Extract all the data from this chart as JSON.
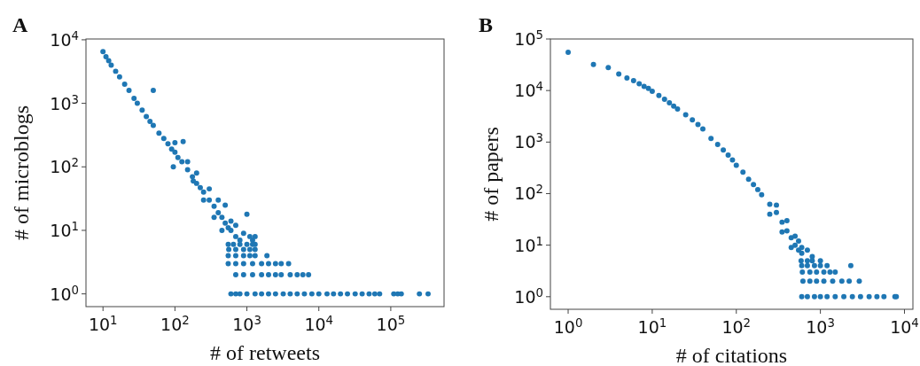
{
  "chart_data": [
    {
      "type": "scatter",
      "title": "A",
      "xlabel": "# of retweets",
      "ylabel": "# of microblogs",
      "log": "xy",
      "marker": "circle",
      "xlim": [
        5.8,
        550000
      ],
      "ylim": [
        0.63,
        10300
      ],
      "xticks": [
        {
          "value": 10,
          "label": "10$^{1}$"
        },
        {
          "value": 100,
          "label": "10$^{2}$"
        },
        {
          "value": 1000,
          "label": "10$^{3}$"
        },
        {
          "value": 10000,
          "label": "10$^{4}$"
        },
        {
          "value": 100000,
          "label": "10$^{5}$"
        }
      ],
      "yticks": [
        {
          "value": 1,
          "label": "10$^{0}$"
        },
        {
          "value": 10,
          "label": "10$^{1}$"
        },
        {
          "value": 100,
          "label": "10$^{2}$"
        },
        {
          "value": 1000,
          "label": "10$^{3}$"
        },
        {
          "value": 10000,
          "label": "10$^{4}$"
        }
      ],
      "series": [
        {
          "color": "#1f77b4",
          "x": [
            10,
            11,
            12,
            13,
            15,
            17,
            20,
            23,
            27,
            30,
            35,
            40,
            45,
            50,
            60,
            70,
            80,
            90,
            100,
            110,
            125,
            150,
            175,
            200,
            225,
            250,
            300,
            350,
            400,
            450,
            500,
            550,
            600,
            700,
            800,
            50,
            100,
            95,
            150,
            200,
            250,
            300,
            350,
            400,
            450,
            500,
            600,
            700,
            1000,
            900,
            1100,
            1200,
            1300,
            130,
            180,
            550,
            650,
            800,
            1000,
            1200,
            1300,
            560,
            700,
            900,
            1100,
            1300,
            550,
            700,
            900,
            1100,
            1300,
            1900,
            550,
            700,
            900,
            1200,
            1600,
            2000,
            2500,
            3000,
            3800,
            700,
            900,
            1200,
            1600,
            2000,
            2500,
            3000,
            4000,
            5000,
            6000,
            7200,
            600,
            700,
            800,
            1000,
            1300,
            1600,
            2000,
            2500,
            3200,
            4000,
            5000,
            6300,
            8000,
            10000,
            13000,
            16000,
            20000,
            25000,
            32000,
            40000,
            50000,
            60000,
            70000,
            110000,
            125000,
            140000,
            250000,
            330000
          ],
          "values": [
            6500,
            5400,
            4700,
            4000,
            3200,
            2600,
            2000,
            1600,
            1200,
            1000,
            780,
            620,
            520,
            450,
            340,
            280,
            230,
            190,
            170,
            140,
            120,
            90,
            70,
            55,
            47,
            40,
            30,
            24,
            19,
            16,
            13,
            11,
            10,
            8,
            7,
            1600,
            240,
            100,
            120,
            80,
            30,
            45,
            16,
            30,
            10,
            25,
            14,
            12,
            18,
            9,
            8,
            7,
            8,
            250,
            60,
            6,
            6,
            6,
            6,
            6,
            6,
            5,
            5,
            5,
            5,
            5,
            4,
            4,
            4,
            4,
            4,
            4,
            3,
            3,
            3,
            3,
            3,
            3,
            3,
            3,
            3,
            2,
            2,
            2,
            2,
            2,
            2,
            2,
            2,
            2,
            2,
            2,
            1,
            1,
            1,
            1,
            1,
            1,
            1,
            1,
            1,
            1,
            1,
            1,
            1,
            1,
            1,
            1,
            1,
            1,
            1,
            1,
            1,
            1,
            1,
            1,
            1,
            1,
            1,
            1
          ]
        }
      ]
    },
    {
      "type": "scatter",
      "title": "B",
      "xlabel": "# of citations",
      "ylabel": "# of papers",
      "log": "xy",
      "marker": "circle",
      "xlim": [
        0.615,
        12600
      ],
      "ylim": [
        0.57,
        100000
      ],
      "xticks": [
        {
          "value": 1,
          "label": "10$^{0}$"
        },
        {
          "value": 10,
          "label": "10$^{1}$"
        },
        {
          "value": 100,
          "label": "10$^{2}$"
        },
        {
          "value": 1000,
          "label": "10$^{3}$"
        },
        {
          "value": 10000,
          "label": "10$^{4}$"
        }
      ],
      "yticks": [
        {
          "value": 1,
          "label": "10$^{0}$"
        },
        {
          "value": 10,
          "label": "10$^{1}$"
        },
        {
          "value": 100,
          "label": "10$^{2}$"
        },
        {
          "value": 1000,
          "label": "10$^{3}$"
        },
        {
          "value": 10000,
          "label": "10$^{4}$"
        },
        {
          "value": 100000,
          "label": "10$^{5}$"
        }
      ],
      "series": [
        {
          "color": "#1f77b4",
          "x": [
            1,
            2,
            3,
            4,
            5,
            6,
            7,
            8,
            9,
            10,
            12,
            14,
            16,
            18,
            20,
            25,
            30,
            35,
            40,
            50,
            60,
            70,
            80,
            90,
            100,
            120,
            140,
            160,
            180,
            200,
            250,
            300,
            350,
            400,
            450,
            500,
            550,
            600,
            250,
            300,
            350,
            400,
            450,
            500,
            550,
            600,
            700,
            800,
            590,
            700,
            800,
            1000,
            600,
            700,
            850,
            1000,
            1200,
            2300,
            610,
            750,
            900,
            1100,
            1300,
            1500,
            620,
            750,
            900,
            1100,
            1400,
            1800,
            2200,
            2900,
            600,
            700,
            850,
            1000,
            1200,
            1500,
            1900,
            2400,
            3000,
            3800,
            4700,
            5700,
            7700,
            8000
          ],
          "values": [
            55000,
            32000,
            28000,
            21000,
            17500,
            15500,
            13500,
            12000,
            11000,
            9700,
            8000,
            6800,
            5800,
            5000,
            4400,
            3400,
            2700,
            2200,
            1800,
            1170,
            900,
            700,
            560,
            450,
            355,
            260,
            190,
            150,
            120,
            95,
            62,
            43,
            28,
            19,
            14,
            10,
            8,
            7,
            40,
            60,
            18,
            30,
            9,
            15,
            12,
            9,
            8,
            6,
            5,
            5,
            5,
            5,
            4,
            4,
            4,
            4,
            4,
            4,
            3,
            3,
            3,
            3,
            3,
            3,
            2,
            2,
            2,
            2,
            2,
            2,
            2,
            2,
            1,
            1,
            1,
            1,
            1,
            1,
            1,
            1,
            1,
            1,
            1,
            1,
            1,
            1
          ]
        }
      ]
    }
  ]
}
